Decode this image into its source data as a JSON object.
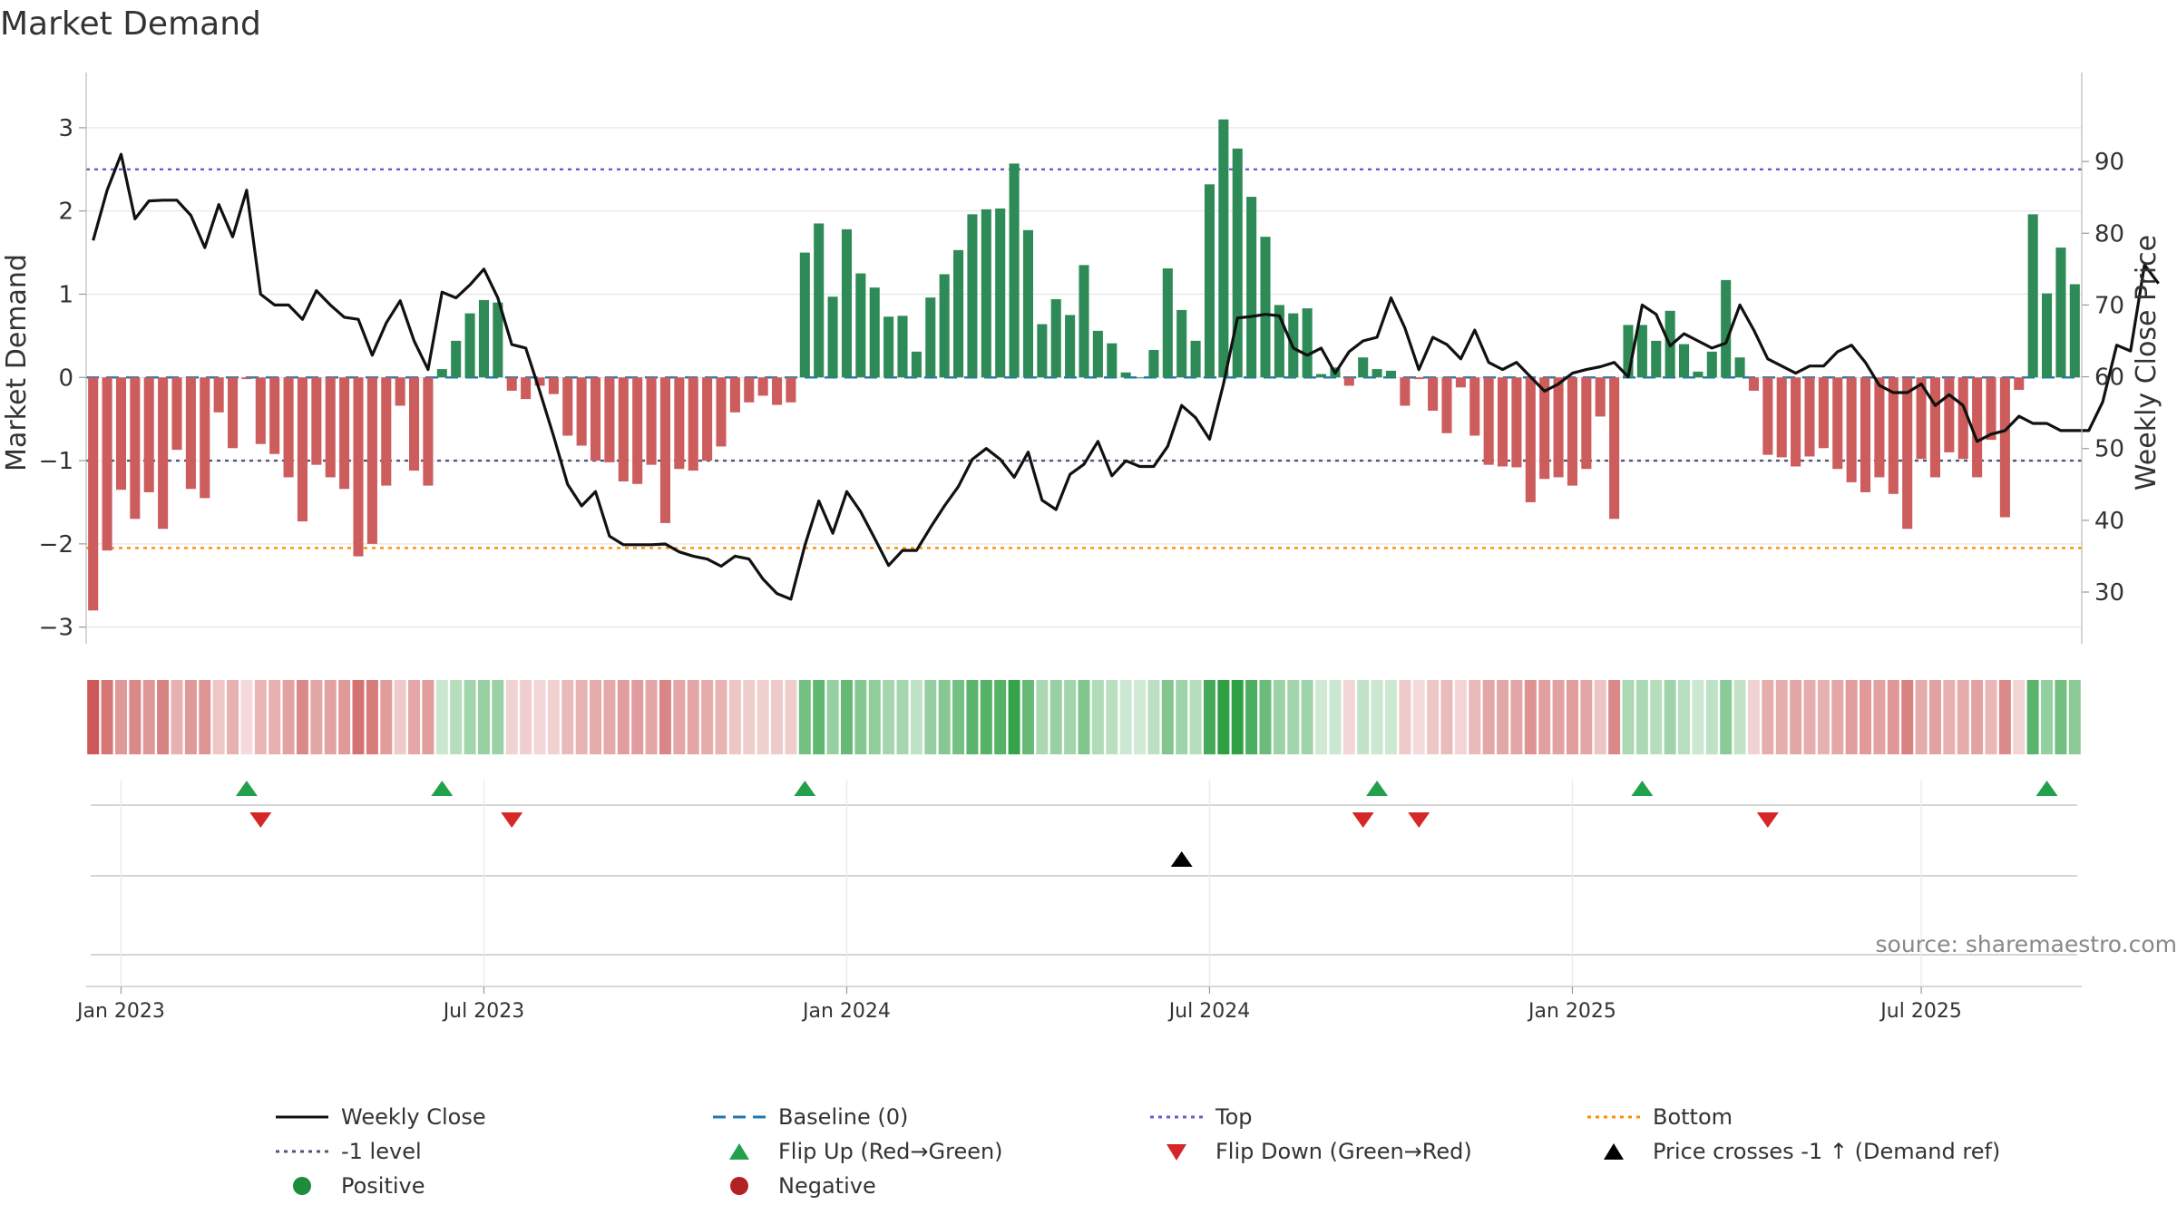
{
  "title": "Market Demand",
  "source": "source: sharemaestro.com",
  "colors": {
    "positive": "#2e8b57",
    "negative": "#cd5c5c",
    "price": "#111111",
    "baseline": "#1f77b4",
    "top": "#6a5acd",
    "minus1": "#555577",
    "bottom": "#ff8c00",
    "flip_up": "#22a04b",
    "flip_down": "#d62728",
    "cross": "#000000",
    "grid": "#e6e6e6"
  },
  "chart_data": {
    "type": "bar",
    "title": "Market Demand",
    "ylabel": "Market Demand",
    "y2label": "Weekly Close Price",
    "ylim": [
      -3.2,
      3.5
    ],
    "y_ticks": [
      3,
      2,
      1,
      0,
      -1,
      -2,
      -3
    ],
    "y_tick_labels": [
      "3",
      "2",
      "1",
      "0",
      "−1",
      "−2",
      "−3"
    ],
    "y2lim": [
      22.8,
      100.5
    ],
    "y2_ticks": [
      90,
      80,
      70,
      60,
      50,
      40,
      30
    ],
    "y2_tick_labels": [
      "90",
      "80",
      "70",
      "60",
      "50",
      "40",
      "30"
    ],
    "x_ticks": [
      2,
      28,
      54,
      80,
      106,
      131
    ],
    "x_tick_labels": [
      "Jan 2023",
      "Jul 2023",
      "Jan 2024",
      "Jul 2024",
      "Jan 2025",
      "Jul 2025"
    ],
    "reference_lines": {
      "baseline": 0,
      "top": 2.5,
      "minus1": -1,
      "bottom": -2.05
    },
    "demand": [
      -2.8,
      -2.08,
      -1.35,
      -1.7,
      -1.38,
      -1.82,
      -0.87,
      -1.34,
      -1.45,
      -0.42,
      -0.85,
      -0.02,
      -0.8,
      -0.92,
      -1.2,
      -1.73,
      -1.05,
      -1.2,
      -1.34,
      -2.15,
      -2.0,
      -1.3,
      -0.34,
      -1.12,
      -1.3,
      0.1,
      0.44,
      0.77,
      0.93,
      0.9,
      -0.16,
      -0.26,
      -0.1,
      -0.2,
      -0.7,
      -0.82,
      -1.0,
      -1.02,
      -1.25,
      -1.28,
      -1.05,
      -1.75,
      -1.1,
      -1.12,
      -1.0,
      -0.83,
      -0.42,
      -0.3,
      -0.22,
      -0.33,
      -0.3,
      1.5,
      1.85,
      0.97,
      1.78,
      1.25,
      1.08,
      0.73,
      0.74,
      0.31,
      0.96,
      1.24,
      1.53,
      1.96,
      2.02,
      2.03,
      2.57,
      1.77,
      0.64,
      0.94,
      0.75,
      1.35,
      0.56,
      0.41,
      0.06,
      0.0,
      0.33,
      1.31,
      0.81,
      0.44,
      2.32,
      3.1,
      2.75,
      2.17,
      1.69,
      0.87,
      0.77,
      0.83,
      0.04,
      0.12,
      -0.1,
      0.24,
      0.1,
      0.08,
      -0.34,
      -0.02,
      -0.4,
      -0.67,
      -0.12,
      -0.7,
      -1.05,
      -1.07,
      -1.08,
      -1.5,
      -1.22,
      -1.2,
      -1.3,
      -1.1,
      -0.47,
      -1.7,
      0.63,
      0.63,
      0.44,
      0.8,
      0.4,
      0.07,
      0.31,
      1.17,
      0.24,
      -0.16,
      -0.93,
      -0.96,
      -1.07,
      -0.95,
      -0.85,
      -1.1,
      -1.26,
      -1.38,
      -1.2,
      -1.4,
      -1.82,
      -0.98,
      -1.2,
      -0.9,
      -0.98,
      -1.2,
      -0.75,
      -1.68,
      -0.15,
      1.96,
      1.01,
      1.56,
      1.12
    ],
    "price": [
      79,
      86,
      91,
      82,
      84.5,
      84.6,
      84.6,
      82.5,
      78,
      84,
      79.5,
      86,
      71.5,
      70,
      70,
      68,
      72,
      70,
      68.3,
      68,
      63,
      67.5,
      70.6,
      65,
      61,
      71.8,
      71,
      72.8,
      75,
      71,
      64.5,
      64,
      58,
      51.7,
      45,
      42,
      44,
      37.8,
      36.6,
      36.6,
      36.6,
      36.7,
      35.6,
      35,
      34.6,
      33.6,
      35,
      34.6,
      31.8,
      29.8,
      29,
      36.5,
      42.7,
      38.2,
      44,
      41.2,
      37.5,
      33.7,
      35.8,
      35.8,
      39,
      42,
      44.7,
      48.5,
      50,
      48.5,
      46,
      49.5,
      42.8,
      41.5,
      46.4,
      47.8,
      51,
      46.2,
      48.3,
      47.5,
      47.5,
      50.3,
      56,
      54.3,
      51.3,
      59,
      68.2,
      68.4,
      68.7,
      68.5,
      64,
      63,
      64,
      60.5,
      63.5,
      65,
      65.5,
      71,
      66.8,
      61,
      65.5,
      64.5,
      62.5,
      66.5,
      62,
      61,
      62,
      60,
      58,
      59,
      60.5,
      61,
      61.4,
      62,
      60,
      70,
      68.7,
      64.3,
      66,
      65,
      64,
      64.7,
      70,
      66.5,
      62.5,
      61.5,
      60.5,
      61.5,
      61.5,
      63.5,
      64.4,
      62,
      58.8,
      57.8,
      57.8,
      59,
      56,
      57.5,
      56,
      51,
      52,
      52.5,
      54.5,
      53.5,
      53.5,
      52.5,
      52.5,
      52.5,
      56.5,
      64.4,
      63.6,
      75.6,
      73
    ],
    "heat_strip": {
      "rows": 1,
      "note": "color intensity of each week's demand"
    },
    "flip_up_weeks": [
      11,
      25,
      51,
      92,
      111,
      140
    ],
    "flip_down_weeks": [
      12,
      30,
      91,
      95,
      120
    ],
    "price_cross_weeks": [
      78
    ],
    "x_label_tick_lines": true
  },
  "legend": [
    {
      "label": "Weekly Close",
      "key": "weekly_close"
    },
    {
      "label": "Baseline (0)",
      "key": "baseline"
    },
    {
      "label": "Top",
      "key": "top"
    },
    {
      "label": "Bottom",
      "key": "bottom"
    },
    {
      "label": "-1 level",
      "key": "minus1"
    },
    {
      "label": "Flip Up (Red→Green)",
      "key": "flip_up"
    },
    {
      "label": "Flip Down (Green→Red)",
      "key": "flip_down"
    },
    {
      "label": "Price crosses -1 ↑ (Demand ref)",
      "key": "cross"
    },
    {
      "label": "Positive",
      "key": "positive"
    },
    {
      "label": "Negative",
      "key": "negative"
    }
  ]
}
